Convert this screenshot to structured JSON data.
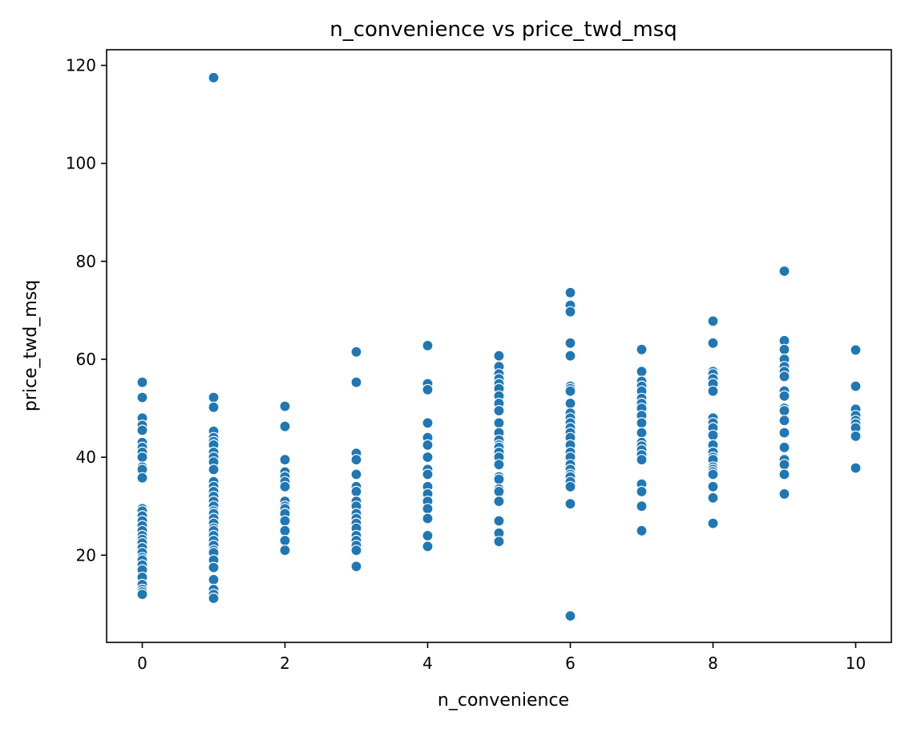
{
  "chart_data": {
    "type": "scatter",
    "title": "n_convenience vs price_twd_msq",
    "xlabel": "n_convenience",
    "ylabel": "price_twd_msq",
    "xlim": [
      -0.5,
      10.5
    ],
    "ylim": [
      2.2,
      123.2
    ],
    "xticks": [
      0,
      2,
      4,
      6,
      8,
      10
    ],
    "yticks": [
      20,
      40,
      60,
      80,
      100,
      120
    ],
    "grid": false,
    "legend": "none",
    "marker_color": "#1f77b4",
    "points": [
      [
        0,
        55.3
      ],
      [
        0,
        52.2
      ],
      [
        0,
        48.0
      ],
      [
        0,
        46.5
      ],
      [
        0,
        45.5
      ],
      [
        0,
        43.0
      ],
      [
        0,
        42.0
      ],
      [
        0,
        41.0
      ],
      [
        0,
        40.0
      ],
      [
        0,
        38.0
      ],
      [
        0,
        37.5
      ],
      [
        0,
        35.8
      ],
      [
        0,
        29.5
      ],
      [
        0,
        29.0
      ],
      [
        0,
        28.0
      ],
      [
        0,
        27.0
      ],
      [
        0,
        26.0
      ],
      [
        0,
        25.0
      ],
      [
        0,
        24.0
      ],
      [
        0,
        23.2
      ],
      [
        0,
        22.5
      ],
      [
        0,
        21.5
      ],
      [
        0,
        20.5
      ],
      [
        0,
        19.5
      ],
      [
        0,
        19.0
      ],
      [
        0,
        18.0
      ],
      [
        0,
        17.0
      ],
      [
        0,
        15.5
      ],
      [
        0,
        14.0
      ],
      [
        0,
        13.0
      ],
      [
        0,
        12.5
      ],
      [
        0,
        12.0
      ],
      [
        1,
        117.5
      ],
      [
        1,
        52.2
      ],
      [
        1,
        50.2
      ],
      [
        1,
        45.3
      ],
      [
        1,
        44.0
      ],
      [
        1,
        43.2
      ],
      [
        1,
        42.5
      ],
      [
        1,
        41.0
      ],
      [
        1,
        40.0
      ],
      [
        1,
        39.0
      ],
      [
        1,
        37.5
      ],
      [
        1,
        35.0
      ],
      [
        1,
        34.0
      ],
      [
        1,
        33.0
      ],
      [
        1,
        32.0
      ],
      [
        1,
        31.0
      ],
      [
        1,
        30.0
      ],
      [
        1,
        29.0
      ],
      [
        1,
        28.5
      ],
      [
        1,
        27.5
      ],
      [
        1,
        26.5
      ],
      [
        1,
        25.5
      ],
      [
        1,
        25.0
      ],
      [
        1,
        24.0
      ],
      [
        1,
        23.0
      ],
      [
        1,
        22.0
      ],
      [
        1,
        21.0
      ],
      [
        1,
        20.5
      ],
      [
        1,
        19.0
      ],
      [
        1,
        17.5
      ],
      [
        1,
        15.0
      ],
      [
        1,
        13.0
      ],
      [
        1,
        12.0
      ],
      [
        1,
        11.2
      ],
      [
        2,
        50.4
      ],
      [
        2,
        46.3
      ],
      [
        2,
        39.5
      ],
      [
        2,
        37.0
      ],
      [
        2,
        36.0
      ],
      [
        2,
        35.0
      ],
      [
        2,
        34.0
      ],
      [
        2,
        31.0
      ],
      [
        2,
        30.0
      ],
      [
        2,
        29.5
      ],
      [
        2,
        28.5
      ],
      [
        2,
        27.0
      ],
      [
        2,
        25.0
      ],
      [
        2,
        23.0
      ],
      [
        2,
        21.0
      ],
      [
        3,
        61.5
      ],
      [
        3,
        55.3
      ],
      [
        3,
        40.8
      ],
      [
        3,
        39.5
      ],
      [
        3,
        36.5
      ],
      [
        3,
        34.0
      ],
      [
        3,
        33.0
      ],
      [
        3,
        31.0
      ],
      [
        3,
        30.0
      ],
      [
        3,
        28.5
      ],
      [
        3,
        27.5
      ],
      [
        3,
        26.5
      ],
      [
        3,
        25.5
      ],
      [
        3,
        24.0
      ],
      [
        3,
        23.0
      ],
      [
        3,
        22.0
      ],
      [
        3,
        21.0
      ],
      [
        3,
        17.7
      ],
      [
        4,
        62.8
      ],
      [
        4,
        55.0
      ],
      [
        4,
        53.8
      ],
      [
        4,
        47.0
      ],
      [
        4,
        44.0
      ],
      [
        4,
        42.5
      ],
      [
        4,
        40.0
      ],
      [
        4,
        37.5
      ],
      [
        4,
        36.5
      ],
      [
        4,
        34.0
      ],
      [
        4,
        32.5
      ],
      [
        4,
        31.0
      ],
      [
        4,
        29.5
      ],
      [
        4,
        27.5
      ],
      [
        4,
        24.0
      ],
      [
        4,
        21.8
      ],
      [
        5,
        60.7
      ],
      [
        5,
        58.5
      ],
      [
        5,
        57.0
      ],
      [
        5,
        56.0
      ],
      [
        5,
        55.0
      ],
      [
        5,
        54.0
      ],
      [
        5,
        52.5
      ],
      [
        5,
        51.0
      ],
      [
        5,
        49.5
      ],
      [
        5,
        47.0
      ],
      [
        5,
        45.0
      ],
      [
        5,
        43.5
      ],
      [
        5,
        42.5
      ],
      [
        5,
        42.0
      ],
      [
        5,
        41.0
      ],
      [
        5,
        40.0
      ],
      [
        5,
        38.5
      ],
      [
        5,
        36.0
      ],
      [
        5,
        35.5
      ],
      [
        5,
        33.5
      ],
      [
        5,
        33.0
      ],
      [
        5,
        31.0
      ],
      [
        5,
        27.0
      ],
      [
        5,
        24.5
      ],
      [
        5,
        22.8
      ],
      [
        6,
        73.6
      ],
      [
        6,
        71.0
      ],
      [
        6,
        69.7
      ],
      [
        6,
        63.3
      ],
      [
        6,
        60.7
      ],
      [
        6,
        54.5
      ],
      [
        6,
        54.0
      ],
      [
        6,
        53.5
      ],
      [
        6,
        51.0
      ],
      [
        6,
        49.0
      ],
      [
        6,
        48.0
      ],
      [
        6,
        47.0
      ],
      [
        6,
        46.0
      ],
      [
        6,
        45.0
      ],
      [
        6,
        44.0
      ],
      [
        6,
        42.5
      ],
      [
        6,
        41.0
      ],
      [
        6,
        40.0
      ],
      [
        6,
        38.5
      ],
      [
        6,
        37.5
      ],
      [
        6,
        36.5
      ],
      [
        6,
        36.0
      ],
      [
        6,
        35.0
      ],
      [
        6,
        34.0
      ],
      [
        6,
        30.5
      ],
      [
        6,
        7.6
      ],
      [
        7,
        62.0
      ],
      [
        7,
        57.5
      ],
      [
        7,
        55.5
      ],
      [
        7,
        54.5
      ],
      [
        7,
        53.5
      ],
      [
        7,
        52.0
      ],
      [
        7,
        51.0
      ],
      [
        7,
        50.0
      ],
      [
        7,
        48.5
      ],
      [
        7,
        47.0
      ],
      [
        7,
        45.0
      ],
      [
        7,
        43.0
      ],
      [
        7,
        42.3
      ],
      [
        7,
        41.5
      ],
      [
        7,
        40.5
      ],
      [
        7,
        39.5
      ],
      [
        7,
        34.5
      ],
      [
        7,
        33.0
      ],
      [
        7,
        30.0
      ],
      [
        7,
        25.0
      ],
      [
        8,
        67.8
      ],
      [
        8,
        63.3
      ],
      [
        8,
        57.5
      ],
      [
        8,
        57.0
      ],
      [
        8,
        56.0
      ],
      [
        8,
        55.0
      ],
      [
        8,
        53.5
      ],
      [
        8,
        48.0
      ],
      [
        8,
        47.0
      ],
      [
        8,
        46.0
      ],
      [
        8,
        44.5
      ],
      [
        8,
        42.5
      ],
      [
        8,
        41.0
      ],
      [
        8,
        40.0
      ],
      [
        8,
        39.5
      ],
      [
        8,
        38.0
      ],
      [
        8,
        37.5
      ],
      [
        8,
        37.0
      ],
      [
        8,
        36.5
      ],
      [
        8,
        34.0
      ],
      [
        8,
        31.7
      ],
      [
        8,
        26.5
      ],
      [
        9,
        78.0
      ],
      [
        9,
        63.8
      ],
      [
        9,
        62.0
      ],
      [
        9,
        60.0
      ],
      [
        9,
        58.5
      ],
      [
        9,
        57.5
      ],
      [
        9,
        56.5
      ],
      [
        9,
        53.5
      ],
      [
        9,
        52.5
      ],
      [
        9,
        50.0
      ],
      [
        9,
        49.5
      ],
      [
        9,
        47.5
      ],
      [
        9,
        45.0
      ],
      [
        9,
        42.0
      ],
      [
        9,
        39.5
      ],
      [
        9,
        38.5
      ],
      [
        9,
        36.5
      ],
      [
        9,
        32.5
      ],
      [
        10,
        61.9
      ],
      [
        10,
        54.5
      ],
      [
        10,
        49.8
      ],
      [
        10,
        48.5
      ],
      [
        10,
        47.5
      ],
      [
        10,
        46.8
      ],
      [
        10,
        46.0
      ],
      [
        10,
        44.3
      ],
      [
        10,
        37.8
      ]
    ]
  }
}
